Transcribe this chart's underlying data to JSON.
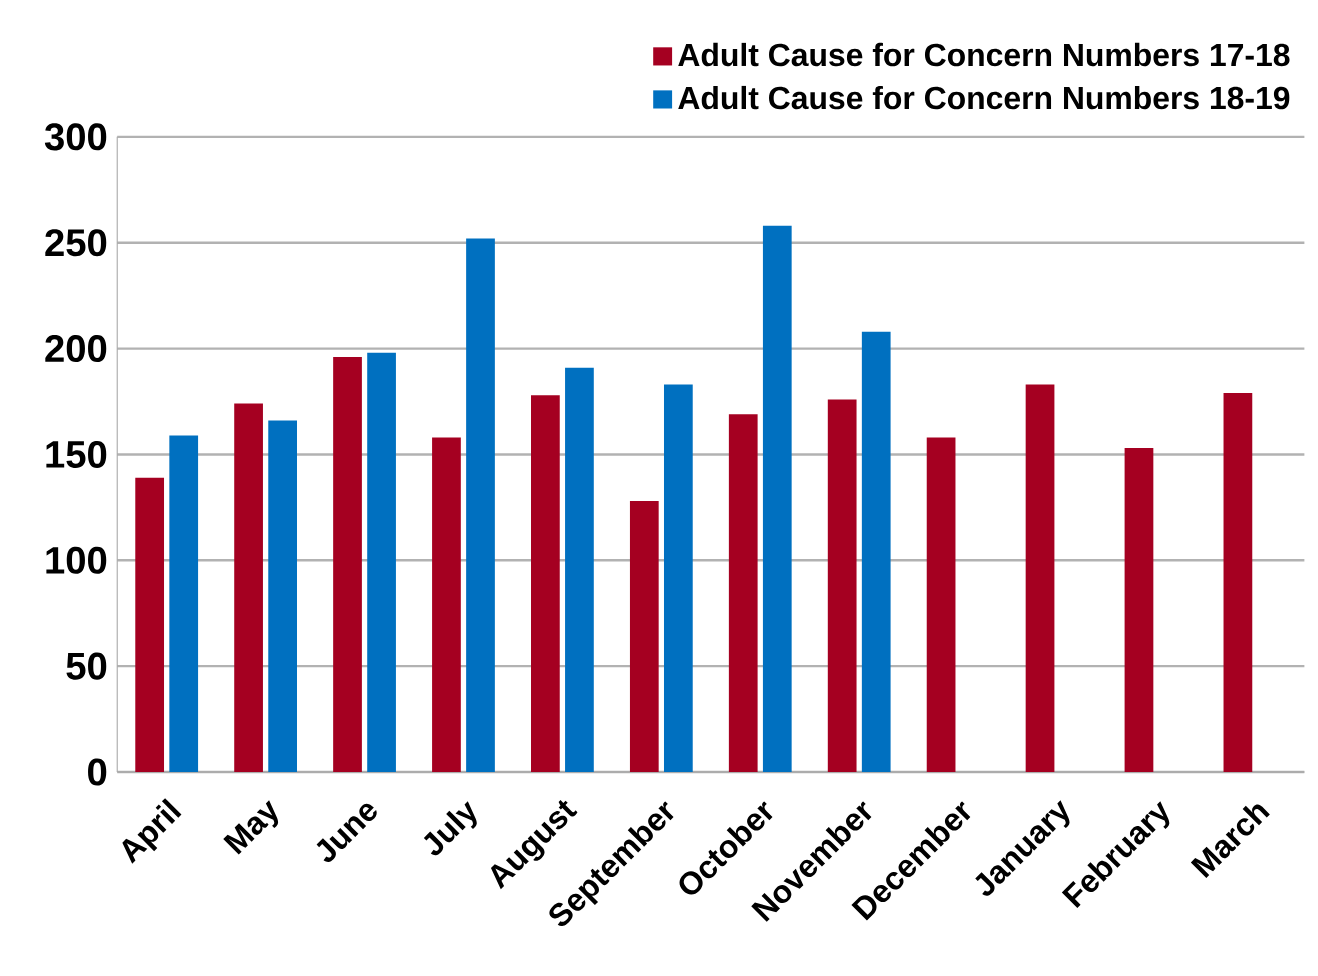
{
  "chart_data": {
    "type": "bar",
    "categories": [
      "April",
      "May",
      "June",
      "July",
      "August",
      "September",
      "October",
      "November",
      "December",
      "January",
      "February",
      "March"
    ],
    "series": [
      {
        "name": "Adult Cause for Concern Numbers 17-18",
        "color": "#a50021",
        "values": [
          139,
          174,
          196,
          158,
          178,
          128,
          169,
          176,
          158,
          183,
          153,
          179
        ]
      },
      {
        "name": "Adult Cause for Concern Numbers 18-19",
        "color": "#0070c0",
        "values": [
          159,
          166,
          198,
          252,
          191,
          183,
          258,
          208,
          null,
          null,
          null,
          null
        ]
      }
    ],
    "ylim": [
      0,
      300
    ],
    "yticks": [
      0,
      50,
      100,
      150,
      200,
      250,
      300
    ],
    "grid": "y",
    "legend": "top right"
  }
}
